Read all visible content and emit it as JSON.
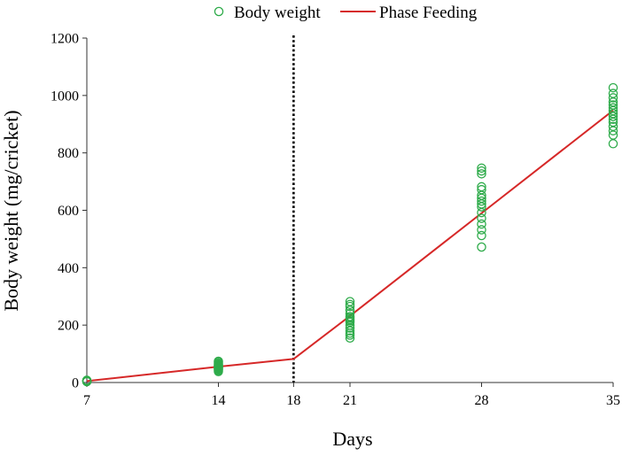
{
  "chart_data": {
    "type": "scatter",
    "title": "",
    "xlabel": "Days",
    "ylabel": "Body weight (mg/cricket)",
    "xlim": [
      7,
      35
    ],
    "ylim": [
      0,
      1200
    ],
    "x_ticks": [
      7,
      14,
      18,
      21,
      28,
      35
    ],
    "y_ticks": [
      0,
      200,
      400,
      600,
      800,
      1000,
      1200
    ],
    "grid": false,
    "legend_position": "top-center",
    "colors": {
      "body_weight": "#2eab4a",
      "phase_feeding": "#d62828",
      "phase_marker": "#000000",
      "axis": "#333333"
    },
    "series": [
      {
        "name": "Body weight",
        "type": "scatter",
        "marker": "open-circle",
        "points": [
          [
            7,
            3
          ],
          [
            7,
            5
          ],
          [
            7,
            6
          ],
          [
            7,
            7
          ],
          [
            7,
            8
          ],
          [
            7,
            4
          ],
          [
            14,
            38
          ],
          [
            14,
            42
          ],
          [
            14,
            45
          ],
          [
            14,
            48
          ],
          [
            14,
            50
          ],
          [
            14,
            52
          ],
          [
            14,
            54
          ],
          [
            14,
            56
          ],
          [
            14,
            58
          ],
          [
            14,
            60
          ],
          [
            14,
            63
          ],
          [
            14,
            66
          ],
          [
            14,
            70
          ],
          [
            14,
            74
          ],
          [
            21,
            155
          ],
          [
            21,
            165
          ],
          [
            21,
            172
          ],
          [
            21,
            180
          ],
          [
            21,
            190
          ],
          [
            21,
            200
          ],
          [
            21,
            210
          ],
          [
            21,
            215
          ],
          [
            21,
            220
          ],
          [
            21,
            225
          ],
          [
            21,
            230
          ],
          [
            21,
            240
          ],
          [
            21,
            252
          ],
          [
            21,
            265
          ],
          [
            21,
            272
          ],
          [
            21,
            282
          ],
          [
            28,
            472
          ],
          [
            28,
            512
          ],
          [
            28,
            532
          ],
          [
            28,
            552
          ],
          [
            28,
            572
          ],
          [
            28,
            592
          ],
          [
            28,
            612
          ],
          [
            28,
            622
          ],
          [
            28,
            632
          ],
          [
            28,
            642
          ],
          [
            28,
            652
          ],
          [
            28,
            672
          ],
          [
            28,
            682
          ],
          [
            28,
            727
          ],
          [
            28,
            737
          ],
          [
            28,
            747
          ],
          [
            35,
            832
          ],
          [
            35,
            862
          ],
          [
            35,
            877
          ],
          [
            35,
            892
          ],
          [
            35,
            907
          ],
          [
            35,
            917
          ],
          [
            35,
            927
          ],
          [
            35,
            937
          ],
          [
            35,
            947
          ],
          [
            35,
            957
          ],
          [
            35,
            967
          ],
          [
            35,
            977
          ],
          [
            35,
            992
          ],
          [
            35,
            1007
          ],
          [
            35,
            1027
          ]
        ]
      },
      {
        "name": "Phase Feeding",
        "type": "line",
        "points": [
          [
            7,
            5
          ],
          [
            14,
            55
          ],
          [
            18,
            82
          ],
          [
            21,
            232
          ],
          [
            28,
            590
          ],
          [
            35,
            948
          ]
        ]
      }
    ],
    "annotations": [
      {
        "type": "vertical-dotted-line",
        "x": 18,
        "description_visible": false
      }
    ]
  }
}
